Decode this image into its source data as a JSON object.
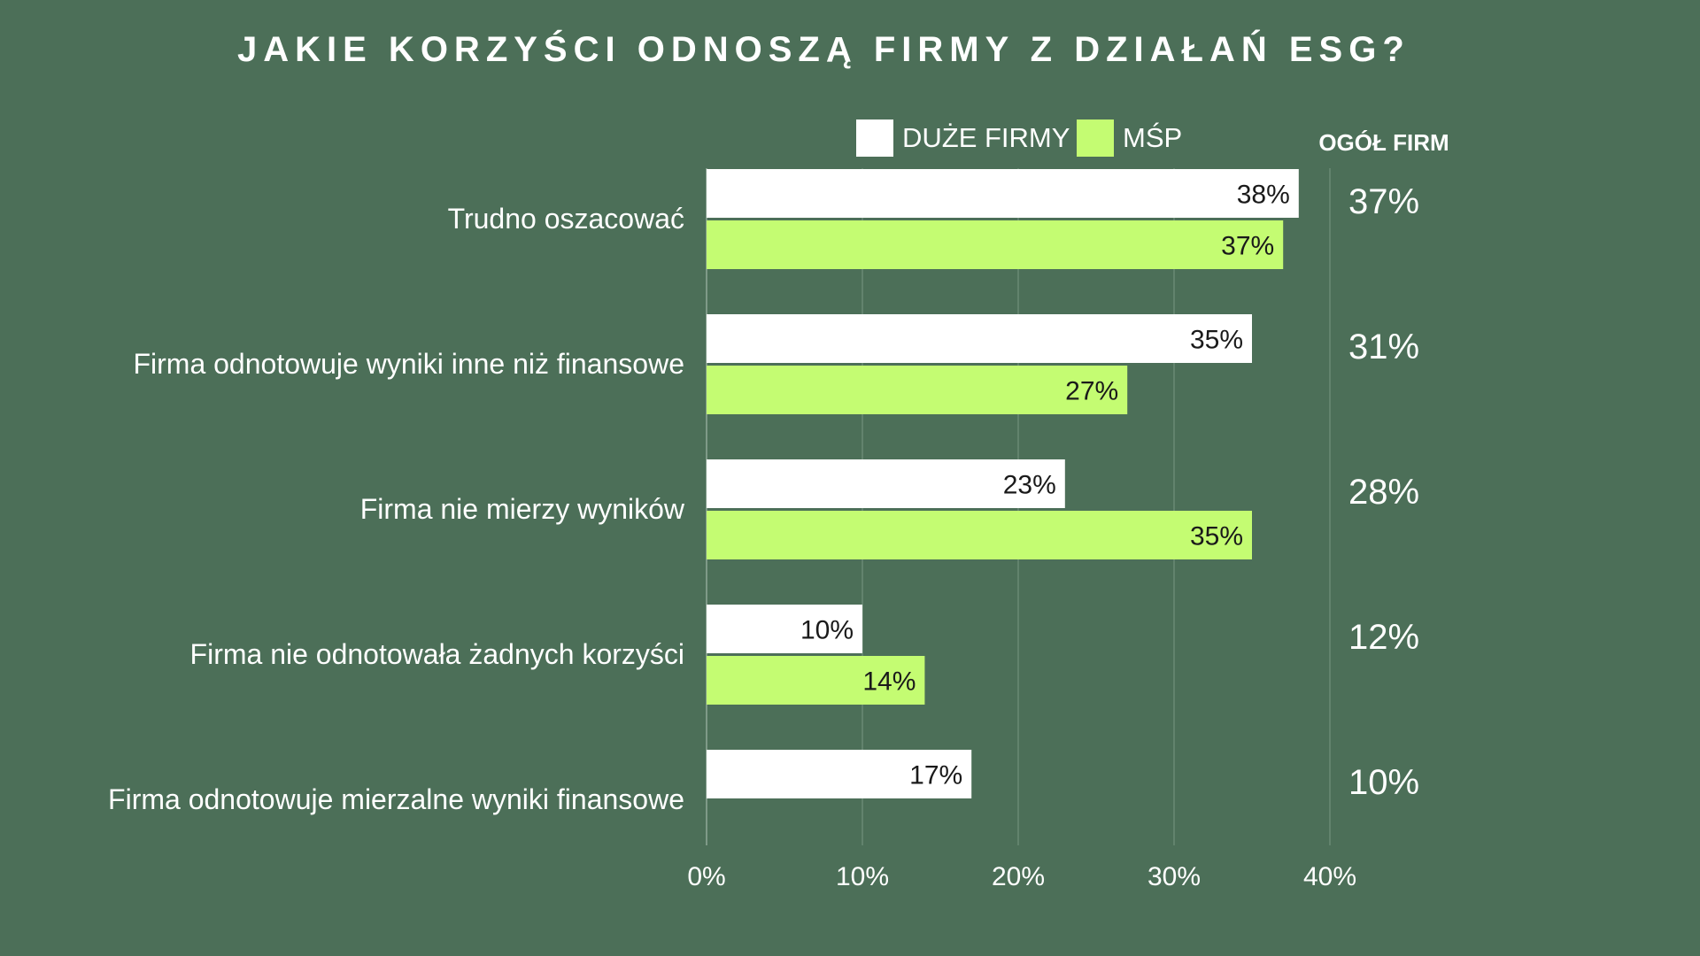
{
  "chart_data": {
    "type": "bar",
    "orientation": "horizontal",
    "title": "JAKIE KORZYŚCI ODNOSZĄ FIRMY Z DZIAŁAŃ ESG?",
    "categories": [
      "Trudno oszacować",
      "Firma odnotowuje wyniki inne niż finansowe",
      "Firma nie mierzy wyników",
      "Firma nie odnotowała żadnych korzyści",
      "Firma odnotowuje mierzalne wyniki finansowe"
    ],
    "series": [
      {
        "name": "DUŻE FIRMY",
        "color": "#ffffff",
        "values": [
          38,
          35,
          23,
          10,
          17
        ]
      },
      {
        "name": "MŚP",
        "color": "#c4fc72",
        "values": [
          37,
          27,
          35,
          14,
          null
        ]
      }
    ],
    "totals_header": "OGÓŁ FIRM",
    "totals": [
      37,
      31,
      28,
      12,
      10
    ],
    "value_suffix": "%",
    "xlim": [
      0,
      40
    ],
    "xticks": [
      "0%",
      "10%",
      "20%",
      "30%",
      "40%"
    ],
    "grid": true,
    "legend_position": "top"
  }
}
